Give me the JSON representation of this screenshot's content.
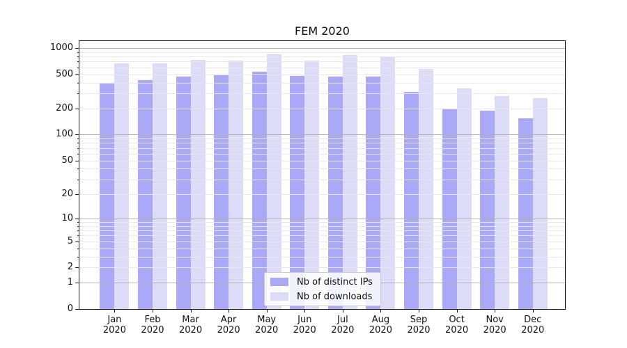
{
  "title": "FEM 2020",
  "legend": {
    "items": [
      {
        "label": "Nb of distinct IPs",
        "color": "#a9a9f7"
      },
      {
        "label": "Nb of downloads",
        "color": "#dcdcf8"
      }
    ],
    "position": "lower center"
  },
  "axes": {
    "y_tick_labels": [
      "1000",
      "500",
      "200",
      "100",
      "50",
      "20",
      "10",
      "5",
      "2",
      "1",
      "0"
    ],
    "x_year": "2020",
    "x_months": [
      "Jan",
      "Feb",
      "Mar",
      "Apr",
      "May",
      "Jun",
      "Jul",
      "Aug",
      "Sep",
      "Oct",
      "Nov",
      "Dec"
    ]
  },
  "colors": {
    "series_ips": "#a9a9f7",
    "series_downloads": "#dcdcf8",
    "grid_major": "#b0b0b0",
    "grid_minor": "#e8e8e8",
    "spine": "#1a1a1a"
  },
  "chart_data": {
    "type": "bar",
    "title": "FEM 2020",
    "categories": [
      "Jan 2020",
      "Feb 2020",
      "Mar 2020",
      "Apr 2020",
      "May 2020",
      "Jun 2020",
      "Jul 2020",
      "Aug 2020",
      "Sep 2020",
      "Oct 2020",
      "Nov 2020",
      "Dec 2020"
    ],
    "series": [
      {
        "name": "Nb of distinct IPs",
        "color": "#a9a9f7",
        "values": [
          400,
          430,
          465,
          490,
          530,
          475,
          470,
          470,
          315,
          200,
          190,
          155
        ]
      },
      {
        "name": "Nb of downloads",
        "color": "#dcdcf8",
        "values": [
          665,
          670,
          735,
          720,
          845,
          720,
          830,
          780,
          575,
          340,
          280,
          265
        ]
      }
    ],
    "xlabel": "",
    "ylabel": "",
    "yscale": "log10(value+1)",
    "ylim": [
      0,
      1200
    ],
    "yticks": [
      1000,
      500,
      200,
      100,
      50,
      20,
      10,
      5,
      2,
      1,
      0
    ],
    "grid": true,
    "grid_over_bars": true,
    "legend_position": "lower center"
  }
}
